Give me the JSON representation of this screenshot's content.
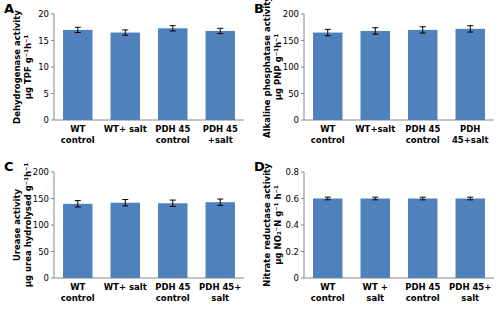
{
  "chart_data": [
    {
      "type": "bar",
      "title": "A",
      "ylabel": "Dehydrogenase  activity\nµg TPF g⁻¹h⁻¹",
      "categories": [
        "WT\ncontrol",
        "WT+ salt",
        "PDH 45\ncontrol",
        "PDH 45\n+salt"
      ],
      "values": [
        17.0,
        16.5,
        17.3,
        16.8
      ],
      "errors": [
        0.5,
        0.5,
        0.5,
        0.5
      ],
      "color": "#4f81bd",
      "ylim": [
        0,
        20
      ],
      "yticks": [
        0,
        5,
        10,
        15,
        20
      ]
    },
    {
      "type": "bar",
      "title": "B",
      "ylabel": "Alkaline phosphatase activity\nµg PNP g⁻¹h⁻¹",
      "categories": [
        "WT\ncontrol",
        "WT+salt",
        "PDH 45\ncontrol",
        "PDH\n45+salt"
      ],
      "values": [
        165,
        168,
        170,
        172
      ],
      "errors": [
        6,
        6,
        6,
        6
      ],
      "color": "#4f81bd",
      "ylim": [
        0,
        200
      ],
      "yticks": [
        0,
        50,
        100,
        150,
        200
      ]
    },
    {
      "type": "bar",
      "title": "C",
      "ylabel": "Urease activity\nµg urea hydrolysed g⁻¹h⁻¹",
      "categories": [
        "WT\ncontrol",
        "WT+ salt",
        "PDH 45\ncontrol",
        "PDH 45+\nsalt"
      ],
      "values": [
        140,
        142,
        141,
        143
      ],
      "errors": [
        6,
        6,
        6,
        6
      ],
      "color": "#4f81bd",
      "ylim": [
        0,
        200
      ],
      "yticks": [
        0,
        50,
        100,
        150,
        200
      ]
    },
    {
      "type": "bar",
      "title": "D",
      "ylabel": "Nitrate reductase activity\nµg NO₂⁻N g⁻¹ h⁻¹",
      "categories": [
        "WT\ncontrol",
        "WT +\nsalt",
        "PDH 45\ncontrol",
        "PDH 45+\nsalt"
      ],
      "values": [
        0.6,
        0.6,
        0.6,
        0.6
      ],
      "errors": [
        0.01,
        0.01,
        0.01,
        0.01
      ],
      "color": "#4f81bd",
      "ylim": [
        0,
        0.8
      ],
      "yticks": [
        0,
        0.2,
        0.4,
        0.6,
        0.8
      ]
    }
  ]
}
